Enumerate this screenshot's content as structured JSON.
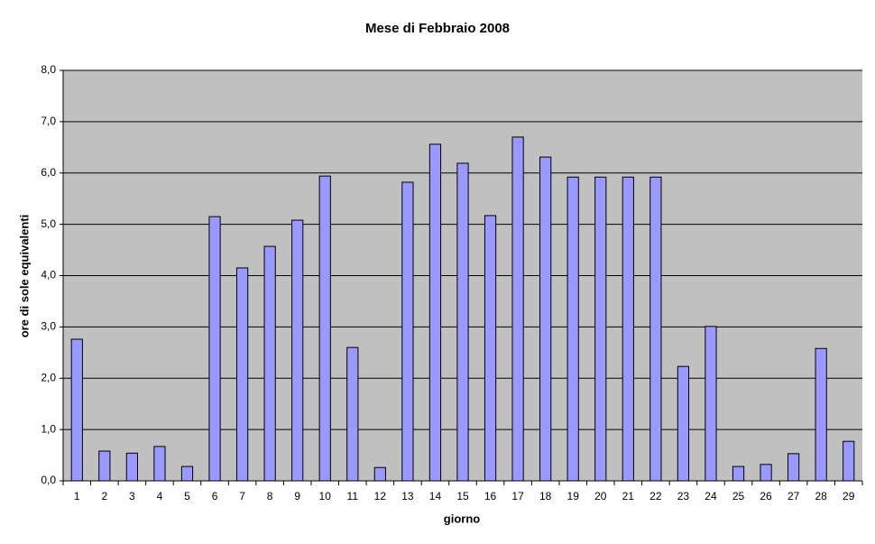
{
  "chart_data": {
    "type": "bar",
    "title": "Mese di Febbraio 2008",
    "x_label": "giorno",
    "y_label": "ore di sole equivalenti",
    "categories": [
      "1",
      "2",
      "3",
      "4",
      "5",
      "6",
      "7",
      "8",
      "9",
      "10",
      "11",
      "12",
      "13",
      "14",
      "15",
      "16",
      "17",
      "18",
      "19",
      "20",
      "21",
      "22",
      "23",
      "24",
      "25",
      "26",
      "27",
      "28",
      "29"
    ],
    "values": [
      2.76,
      0.58,
      0.54,
      0.67,
      0.28,
      5.15,
      4.15,
      4.57,
      5.08,
      5.94,
      2.6,
      0.26,
      5.82,
      6.56,
      6.19,
      5.17,
      6.7,
      6.31,
      5.92,
      5.92,
      5.92,
      5.92,
      2.23,
      3.01,
      0.28,
      0.32,
      0.53,
      2.58,
      0.77
    ],
    "color": "#9999ff",
    "ylim": [
      0,
      8
    ],
    "yticks": [
      {
        "value": 0,
        "label": "0,0"
      },
      {
        "value": 1,
        "label": "1,0"
      },
      {
        "value": 2,
        "label": "2,0"
      },
      {
        "value": 3,
        "label": "3,0"
      },
      {
        "value": 4,
        "label": "4,0"
      },
      {
        "value": 5,
        "label": "5,0"
      },
      {
        "value": 6,
        "label": "6,0"
      },
      {
        "value": 7,
        "label": "7,0"
      },
      {
        "value": 8,
        "label": "8,0"
      }
    ],
    "grid": true
  }
}
